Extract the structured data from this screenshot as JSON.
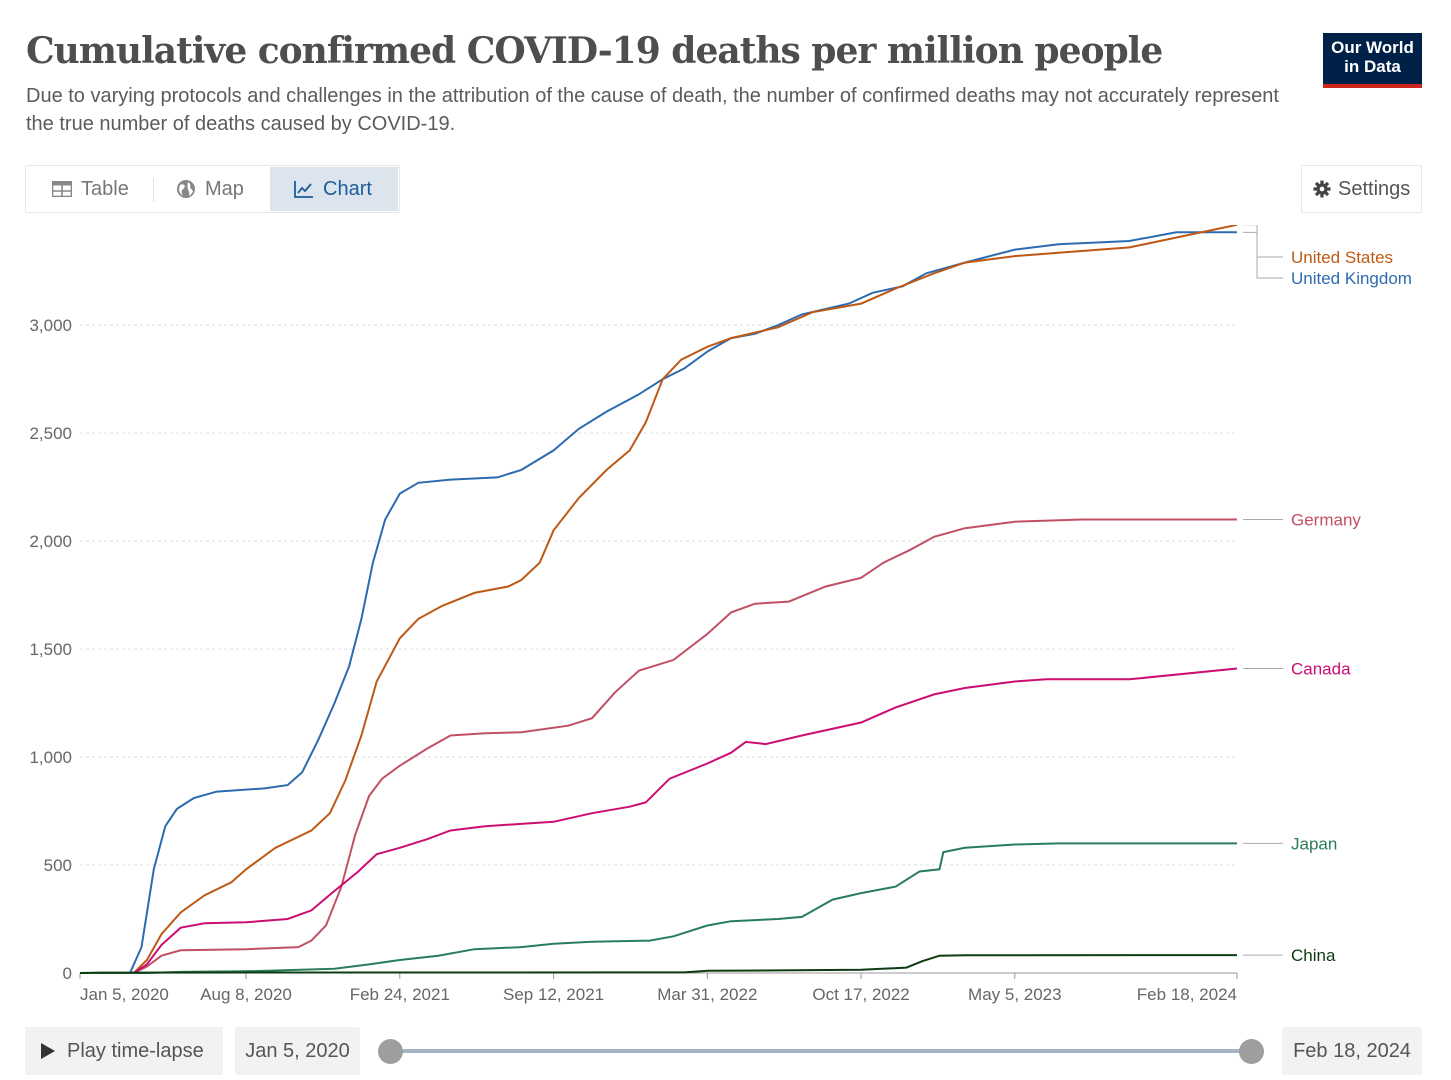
{
  "header": {
    "title": "Cumulative confirmed COVID-19 deaths per million people",
    "subtitle": "Due to varying protocols and challenges in the attribution of the cause of death, the number of confirmed deaths may not accurately represent the true number of deaths caused by COVID-19.",
    "logo_line1": "Our World",
    "logo_line2": "in Data",
    "logo_bg": "#002147",
    "logo_accent": "#ce261e"
  },
  "tabs": [
    {
      "label": "Table",
      "icon": "table-icon",
      "active": false
    },
    {
      "label": "Map",
      "icon": "globe-icon",
      "active": false
    },
    {
      "label": "Chart",
      "icon": "line-chart-icon",
      "active": true
    }
  ],
  "settings": {
    "label": "Settings",
    "icon": "gear-icon"
  },
  "timeline": {
    "play_label": "Play time-lapse",
    "start_date": "Jan 5, 2020",
    "end_date": "Feb 18, 2024"
  },
  "chart_data": {
    "type": "line",
    "title": "Cumulative confirmed COVID-19 deaths per million people",
    "ylim": [
      0,
      3450
    ],
    "yticks": [
      0,
      500,
      1000,
      1500,
      2000,
      2500,
      3000
    ],
    "ytick_labels": [
      "0",
      "500",
      "1,000",
      "1,500",
      "2,000",
      "2,500",
      "3,000"
    ],
    "x_range": [
      "2020-01-05",
      "2024-02-18"
    ],
    "xtick_labels": [
      "Jan 5, 2020",
      "Aug 8, 2020",
      "Feb 24, 2021",
      "Sep 12, 2021",
      "Mar 31, 2022",
      "Oct 17, 2022",
      "May 5, 2023",
      "Feb 18, 2024"
    ],
    "xtick_dates": [
      "2020-01-05",
      "2020-08-08",
      "2021-02-24",
      "2021-09-12",
      "2022-03-31",
      "2022-10-17",
      "2023-05-05",
      "2024-02-18"
    ],
    "grid": true,
    "legend": "right-end-labels",
    "series": [
      {
        "name": "United Kingdom",
        "color": "#2c6bb0",
        "points": [
          [
            "2020-01-05",
            0
          ],
          [
            "2020-03-10",
            0
          ],
          [
            "2020-03-25",
            120
          ],
          [
            "2020-04-10",
            480
          ],
          [
            "2020-04-25",
            680
          ],
          [
            "2020-05-10",
            760
          ],
          [
            "2020-06-01",
            810
          ],
          [
            "2020-07-01",
            840
          ],
          [
            "2020-09-01",
            855
          ],
          [
            "2020-10-01",
            870
          ],
          [
            "2020-10-20",
            930
          ],
          [
            "2020-11-10",
            1080
          ],
          [
            "2020-12-01",
            1250
          ],
          [
            "2020-12-20",
            1420
          ],
          [
            "2021-01-05",
            1640
          ],
          [
            "2021-01-20",
            1900
          ],
          [
            "2021-02-05",
            2100
          ],
          [
            "2021-02-24",
            2220
          ],
          [
            "2021-03-20",
            2270
          ],
          [
            "2021-05-01",
            2285
          ],
          [
            "2021-07-01",
            2295
          ],
          [
            "2021-08-01",
            2330
          ],
          [
            "2021-09-12",
            2420
          ],
          [
            "2021-10-15",
            2520
          ],
          [
            "2021-11-20",
            2600
          ],
          [
            "2022-01-01",
            2680
          ],
          [
            "2022-02-01",
            2750
          ],
          [
            "2022-03-01",
            2800
          ],
          [
            "2022-04-01",
            2880
          ],
          [
            "2022-05-01",
            2940
          ],
          [
            "2022-06-01",
            2960
          ],
          [
            "2022-07-01",
            3000
          ],
          [
            "2022-08-01",
            3050
          ],
          [
            "2022-10-01",
            3100
          ],
          [
            "2022-11-01",
            3150
          ],
          [
            "2022-12-10",
            3180
          ],
          [
            "2023-01-10",
            3240
          ],
          [
            "2023-03-01",
            3290
          ],
          [
            "2023-05-05",
            3350
          ],
          [
            "2023-07-01",
            3375
          ],
          [
            "2023-10-01",
            3390
          ],
          [
            "2023-12-01",
            3430
          ],
          [
            "2024-02-18",
            3430
          ]
        ]
      },
      {
        "name": "United States",
        "color": "#be5915",
        "points": [
          [
            "2020-01-05",
            0
          ],
          [
            "2020-03-15",
            0
          ],
          [
            "2020-04-01",
            60
          ],
          [
            "2020-04-20",
            180
          ],
          [
            "2020-05-15",
            280
          ],
          [
            "2020-06-15",
            360
          ],
          [
            "2020-07-20",
            420
          ],
          [
            "2020-08-08",
            480
          ],
          [
            "2020-09-15",
            580
          ],
          [
            "2020-11-01",
            660
          ],
          [
            "2020-11-25",
            740
          ],
          [
            "2020-12-15",
            890
          ],
          [
            "2021-01-05",
            1100
          ],
          [
            "2021-01-25",
            1350
          ],
          [
            "2021-02-24",
            1550
          ],
          [
            "2021-03-20",
            1640
          ],
          [
            "2021-04-20",
            1700
          ],
          [
            "2021-06-01",
            1760
          ],
          [
            "2021-07-15",
            1790
          ],
          [
            "2021-08-01",
            1820
          ],
          [
            "2021-08-25",
            1900
          ],
          [
            "2021-09-12",
            2050
          ],
          [
            "2021-10-15",
            2200
          ],
          [
            "2021-11-20",
            2330
          ],
          [
            "2021-12-20",
            2420
          ],
          [
            "2022-01-10",
            2550
          ],
          [
            "2022-02-01",
            2750
          ],
          [
            "2022-02-25",
            2840
          ],
          [
            "2022-03-31",
            2900
          ],
          [
            "2022-05-01",
            2940
          ],
          [
            "2022-07-01",
            2990
          ],
          [
            "2022-08-15",
            3060
          ],
          [
            "2022-10-17",
            3100
          ],
          [
            "2022-12-01",
            3170
          ],
          [
            "2023-01-20",
            3240
          ],
          [
            "2023-03-01",
            3290
          ],
          [
            "2023-05-05",
            3320
          ],
          [
            "2023-07-01",
            3335
          ],
          [
            "2023-10-01",
            3360
          ],
          [
            "2024-02-18",
            3465
          ]
        ]
      },
      {
        "name": "Germany",
        "color": "#c15065",
        "points": [
          [
            "2020-01-05",
            0
          ],
          [
            "2020-03-15",
            0
          ],
          [
            "2020-04-01",
            30
          ],
          [
            "2020-04-20",
            80
          ],
          [
            "2020-05-15",
            105
          ],
          [
            "2020-08-08",
            110
          ],
          [
            "2020-10-15",
            120
          ],
          [
            "2020-11-01",
            150
          ],
          [
            "2020-11-20",
            220
          ],
          [
            "2020-12-10",
            400
          ],
          [
            "2020-12-28",
            640
          ],
          [
            "2021-01-15",
            820
          ],
          [
            "2021-02-01",
            900
          ],
          [
            "2021-02-24",
            960
          ],
          [
            "2021-04-01",
            1040
          ],
          [
            "2021-05-01",
            1100
          ],
          [
            "2021-06-15",
            1110
          ],
          [
            "2021-08-01",
            1115
          ],
          [
            "2021-10-01",
            1145
          ],
          [
            "2021-11-01",
            1180
          ],
          [
            "2021-12-01",
            1300
          ],
          [
            "2022-01-01",
            1400
          ],
          [
            "2022-02-15",
            1450
          ],
          [
            "2022-03-31",
            1570
          ],
          [
            "2022-05-01",
            1670
          ],
          [
            "2022-06-01",
            1710
          ],
          [
            "2022-07-15",
            1720
          ],
          [
            "2022-09-01",
            1790
          ],
          [
            "2022-10-17",
            1830
          ],
          [
            "2022-11-15",
            1900
          ],
          [
            "2022-12-20",
            1960
          ],
          [
            "2023-01-20",
            2020
          ],
          [
            "2023-03-01",
            2060
          ],
          [
            "2023-05-05",
            2090
          ],
          [
            "2023-08-01",
            2100
          ],
          [
            "2024-02-18",
            2100
          ]
        ]
      },
      {
        "name": "Canada",
        "color": "#cc0d73",
        "points": [
          [
            "2020-01-05",
            0
          ],
          [
            "2020-03-15",
            0
          ],
          [
            "2020-04-01",
            40
          ],
          [
            "2020-04-20",
            130
          ],
          [
            "2020-05-15",
            210
          ],
          [
            "2020-06-15",
            230
          ],
          [
            "2020-08-08",
            235
          ],
          [
            "2020-10-01",
            250
          ],
          [
            "2020-11-01",
            290
          ],
          [
            "2020-12-01",
            380
          ],
          [
            "2021-01-01",
            470
          ],
          [
            "2021-01-25",
            550
          ],
          [
            "2021-02-24",
            580
          ],
          [
            "2021-04-01",
            620
          ],
          [
            "2021-05-01",
            660
          ],
          [
            "2021-06-15",
            680
          ],
          [
            "2021-09-12",
            700
          ],
          [
            "2021-11-01",
            740
          ],
          [
            "2021-12-20",
            770
          ],
          [
            "2022-01-10",
            790
          ],
          [
            "2022-02-10",
            900
          ],
          [
            "2022-03-31",
            970
          ],
          [
            "2022-05-01",
            1020
          ],
          [
            "2022-05-20",
            1070
          ],
          [
            "2022-06-15",
            1060
          ],
          [
            "2022-08-01",
            1100
          ],
          [
            "2022-10-17",
            1160
          ],
          [
            "2022-12-01",
            1230
          ],
          [
            "2023-01-20",
            1290
          ],
          [
            "2023-03-01",
            1320
          ],
          [
            "2023-05-05",
            1350
          ],
          [
            "2023-06-15",
            1360
          ],
          [
            "2023-10-01",
            1360
          ],
          [
            "2024-02-18",
            1410
          ]
        ]
      },
      {
        "name": "Japan",
        "color": "#2a7d5a",
        "points": [
          [
            "2020-01-05",
            0
          ],
          [
            "2020-04-01",
            0
          ],
          [
            "2020-05-15",
            5
          ],
          [
            "2020-08-08",
            8
          ],
          [
            "2020-12-01",
            20
          ],
          [
            "2021-01-15",
            40
          ],
          [
            "2021-02-24",
            60
          ],
          [
            "2021-04-15",
            80
          ],
          [
            "2021-06-01",
            110
          ],
          [
            "2021-08-01",
            120
          ],
          [
            "2021-09-12",
            135
          ],
          [
            "2021-11-01",
            145
          ],
          [
            "2022-01-15",
            150
          ],
          [
            "2022-02-15",
            170
          ],
          [
            "2022-03-31",
            220
          ],
          [
            "2022-05-01",
            240
          ],
          [
            "2022-07-01",
            250
          ],
          [
            "2022-08-01",
            260
          ],
          [
            "2022-09-10",
            340
          ],
          [
            "2022-10-17",
            370
          ],
          [
            "2022-12-01",
            400
          ],
          [
            "2023-01-01",
            470
          ],
          [
            "2023-01-27",
            480
          ],
          [
            "2023-02-01",
            560
          ],
          [
            "2023-03-01",
            580
          ],
          [
            "2023-05-05",
            595
          ],
          [
            "2023-07-01",
            600
          ],
          [
            "2024-02-18",
            600
          ]
        ]
      },
      {
        "name": "China",
        "color": "#0d3b12",
        "points": [
          [
            "2020-01-05",
            0
          ],
          [
            "2020-02-01",
            2
          ],
          [
            "2022-03-01",
            3
          ],
          [
            "2022-04-01",
            10
          ],
          [
            "2022-10-17",
            15
          ],
          [
            "2022-12-15",
            25
          ],
          [
            "2023-01-05",
            55
          ],
          [
            "2023-01-27",
            80
          ],
          [
            "2023-03-01",
            82
          ],
          [
            "2024-02-18",
            83
          ]
        ]
      }
    ]
  }
}
